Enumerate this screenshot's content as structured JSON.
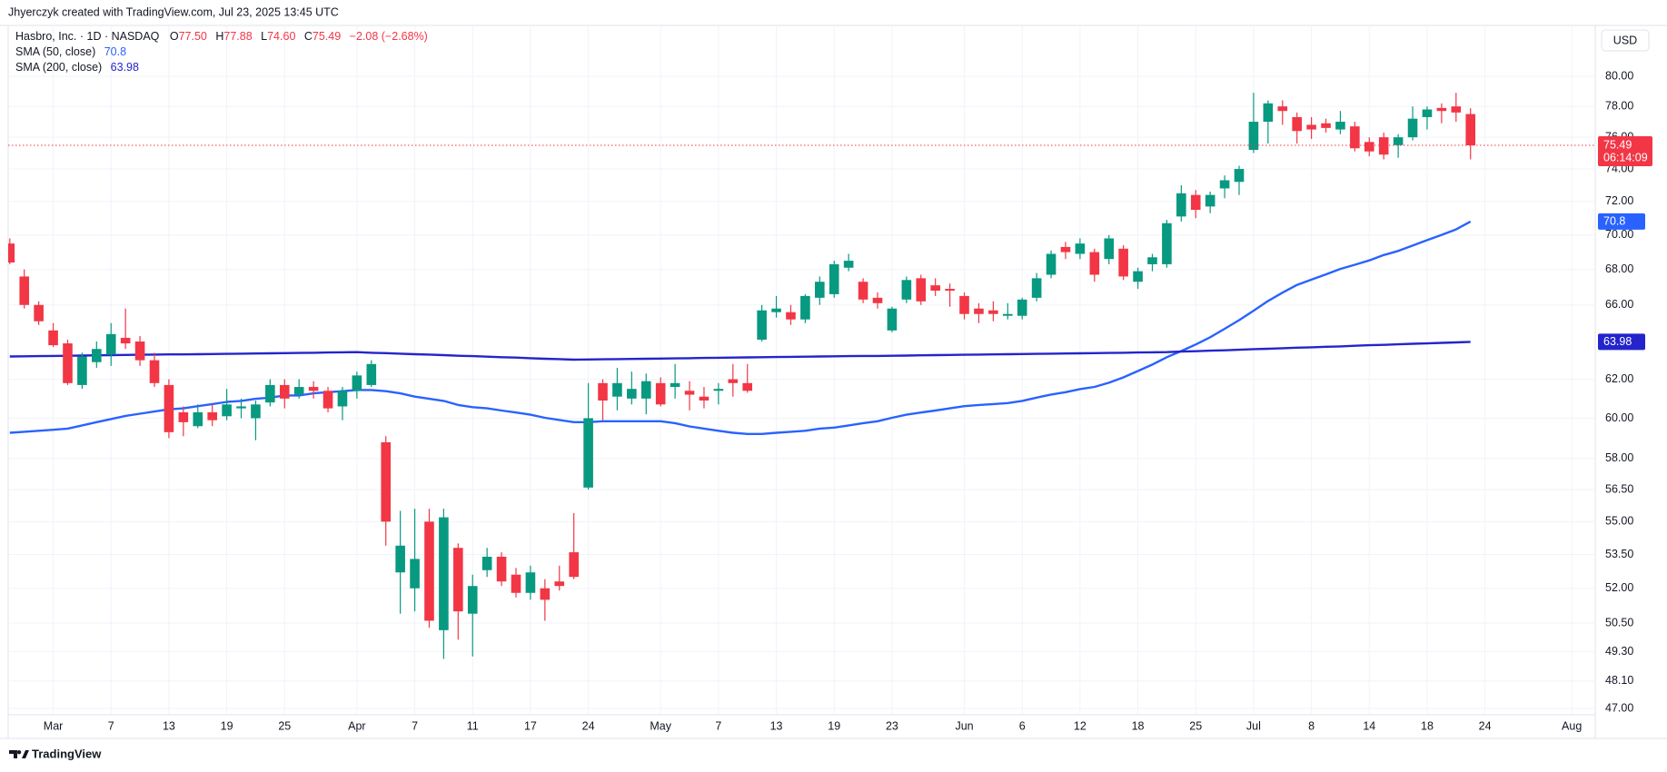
{
  "header": "Jhyerczyk created with TradingView.com, Jul 23, 2025 13:45 UTC",
  "footer": "TradingView",
  "chart_data": {
    "type": "candlestick",
    "legend": {
      "symbol": "Hasbro, Inc. · 1D · NASDAQ",
      "fields": [
        {
          "key": "O",
          "value": "77.50"
        },
        {
          "key": "H",
          "value": "77.88"
        },
        {
          "key": "L",
          "value": "74.60"
        },
        {
          "key": "C",
          "value": "75.49"
        }
      ],
      "change": "−2.08 (−2.68%)"
    },
    "currency": "USD",
    "last_price_countdown": "06:14:09",
    "up_color": "#089981",
    "down_color": "#f23645",
    "log_scale": true,
    "grid": true,
    "ylim": [
      46.75,
      83.5
    ],
    "yticks": [
      {
        "value": 80,
        "label": "80.00"
      },
      {
        "value": 78,
        "label": "78.00"
      },
      {
        "value": 76,
        "label": "76.00"
      },
      {
        "value": 74,
        "label": "74.00"
      },
      {
        "value": 72,
        "label": "72.00"
      },
      {
        "value": 70,
        "label": "70.00"
      },
      {
        "value": 68,
        "label": "68.00"
      },
      {
        "value": 66,
        "label": "66.00"
      },
      {
        "value": 62,
        "label": "62.00"
      },
      {
        "value": 60,
        "label": "60.00"
      },
      {
        "value": 58,
        "label": "58.00"
      },
      {
        "value": 56.5,
        "label": "56.50"
      },
      {
        "value": 55,
        "label": "55.00"
      },
      {
        "value": 53.5,
        "label": "53.50"
      },
      {
        "value": 52,
        "label": "52.00"
      },
      {
        "value": 50.5,
        "label": "50.50"
      },
      {
        "value": 49.3,
        "label": "49.30"
      },
      {
        "value": 48.1,
        "label": "48.10"
      },
      {
        "value": 47,
        "label": "47.00"
      }
    ],
    "categories": [
      null,
      null,
      null,
      "Mar",
      null,
      null,
      null,
      "7",
      null,
      null,
      null,
      "13",
      null,
      null,
      null,
      "19",
      null,
      null,
      null,
      "25",
      null,
      null,
      null,
      null,
      "Apr",
      null,
      null,
      null,
      "7",
      null,
      null,
      null,
      "11",
      null,
      null,
      null,
      "17",
      null,
      null,
      null,
      "24",
      null,
      null,
      null,
      null,
      "May",
      null,
      null,
      null,
      "7",
      null,
      null,
      null,
      "13",
      null,
      null,
      null,
      "19",
      null,
      null,
      null,
      "23",
      null,
      null,
      null,
      null,
      "Jun",
      null,
      null,
      null,
      "6",
      null,
      null,
      null,
      "12",
      null,
      null,
      null,
      "18",
      null,
      null,
      null,
      "25",
      null,
      null,
      null,
      "Jul",
      null,
      null,
      null,
      "8",
      null,
      null,
      null,
      "14",
      null,
      null,
      null,
      "18",
      null,
      null,
      null,
      "24",
      null,
      null,
      null,
      null,
      null,
      "Aug"
    ],
    "open": [
      69.5,
      67.6,
      66.0,
      64.6,
      63.9,
      61.7,
      62.9,
      63.3,
      64.2,
      64.0,
      63.0,
      61.7,
      60.3,
      59.6,
      60.3,
      60.1,
      60.5,
      60.0,
      60.8,
      61.7,
      61.2,
      61.6,
      61.4,
      60.6,
      61.4,
      61.7,
      58.8,
      52.7,
      52.0,
      55.0,
      50.2,
      53.8,
      50.9,
      52.8,
      53.4,
      52.6,
      51.8,
      52.0,
      52.3,
      53.6,
      56.6,
      61.8,
      61.1,
      61.0,
      61.0,
      61.8,
      61.6,
      61.4,
      61.1,
      61.4,
      62.0,
      61.8,
      64.1,
      65.6,
      65.6,
      65.2,
      66.4,
      66.6,
      68.1,
      67.3,
      66.4,
      64.6,
      66.3,
      67.5,
      67.1,
      66.9,
      66.5,
      65.8,
      65.7,
      65.4,
      65.4,
      66.4,
      67.7,
      69.3,
      68.9,
      69.0,
      68.6,
      69.2,
      67.3,
      68.3,
      68.3,
      71.1,
      72.4,
      71.7,
      72.8,
      73.2,
      75.2,
      77.0,
      78.0,
      77.3,
      76.8,
      76.9,
      76.5,
      76.7,
      75.7,
      76.0,
      75.5,
      76.0,
      77.3,
      77.9,
      78.0,
      77.5,
      null,
      null,
      null,
      null,
      null,
      null,
      null
    ],
    "high": [
      69.8,
      68.0,
      66.2,
      65.0,
      64.1,
      63.4,
      64.0,
      65.0,
      65.8,
      64.3,
      63.4,
      62.0,
      60.6,
      60.7,
      60.7,
      61.5,
      61.0,
      60.9,
      62.0,
      62.0,
      62.0,
      61.9,
      61.6,
      61.6,
      62.4,
      63.0,
      59.1,
      55.5,
      55.6,
      55.6,
      55.6,
      54.0,
      52.6,
      53.8,
      53.6,
      52.9,
      53.0,
      52.4,
      53.0,
      55.4,
      61.8,
      62.0,
      62.6,
      62.4,
      62.3,
      62.1,
      62.8,
      61.9,
      61.6,
      61.8,
      62.8,
      62.8,
      66.0,
      66.5,
      66.0,
      66.6,
      67.6,
      68.5,
      68.9,
      67.5,
      66.7,
      65.9,
      67.6,
      67.7,
      67.5,
      67.2,
      66.7,
      66.1,
      66.2,
      66.1,
      66.4,
      67.8,
      69.1,
      69.6,
      69.8,
      69.2,
      70.0,
      69.4,
      68.1,
      68.9,
      70.9,
      73.0,
      72.7,
      72.6,
      73.6,
      74.2,
      78.9,
      78.4,
      78.4,
      77.6,
      77.3,
      77.2,
      77.7,
      77.0,
      76.0,
      76.3,
      76.2,
      78.0,
      78.0,
      78.2,
      78.9,
      77.88,
      null,
      null,
      null,
      null,
      null,
      null,
      null
    ],
    "low": [
      68.3,
      65.8,
      64.9,
      63.7,
      61.7,
      61.5,
      62.6,
      62.7,
      63.6,
      62.7,
      61.6,
      59.0,
      59.1,
      59.5,
      59.6,
      59.9,
      60.0,
      58.9,
      60.6,
      60.5,
      61.0,
      61.0,
      60.3,
      59.9,
      61.0,
      61.6,
      53.9,
      50.9,
      51.0,
      50.3,
      49.0,
      49.8,
      49.1,
      52.5,
      52.1,
      51.6,
      51.5,
      50.6,
      51.9,
      52.4,
      56.5,
      59.9,
      60.4,
      60.7,
      60.2,
      60.6,
      61.0,
      60.4,
      60.5,
      60.7,
      61.1,
      61.3,
      64.0,
      65.3,
      64.9,
      65.0,
      66.0,
      66.4,
      67.9,
      66.1,
      65.8,
      64.5,
      66.1,
      66.0,
      66.5,
      65.9,
      65.2,
      65.0,
      65.1,
      65.2,
      65.2,
      66.2,
      67.5,
      68.6,
      68.6,
      67.3,
      68.3,
      67.4,
      66.9,
      67.9,
      68.1,
      70.8,
      71.0,
      71.3,
      72.2,
      72.4,
      75.0,
      75.6,
      76.8,
      75.6,
      75.9,
      76.3,
      76.2,
      75.1,
      74.8,
      74.6,
      74.7,
      75.8,
      76.5,
      76.9,
      77.0,
      74.6,
      null,
      null,
      null,
      null,
      null,
      null,
      null
    ],
    "close": [
      68.4,
      66.0,
      65.1,
      63.8,
      61.8,
      63.2,
      63.6,
      64.4,
      63.9,
      63.0,
      61.8,
      59.3,
      59.8,
      60.3,
      59.9,
      60.7,
      60.6,
      60.7,
      61.7,
      61.0,
      61.6,
      61.4,
      60.5,
      61.4,
      62.2,
      62.8,
      55.0,
      53.9,
      53.3,
      50.6,
      55.2,
      51.0,
      52.1,
      53.4,
      52.3,
      51.8,
      52.7,
      51.5,
      52.1,
      52.5,
      60.0,
      60.9,
      61.8,
      61.5,
      61.9,
      60.7,
      61.8,
      61.2,
      60.9,
      61.5,
      61.8,
      61.4,
      65.7,
      65.8,
      65.2,
      66.5,
      67.3,
      68.3,
      68.5,
      66.3,
      66.1,
      65.8,
      67.4,
      66.2,
      66.8,
      66.8,
      65.5,
      65.5,
      65.5,
      65.5,
      66.3,
      67.5,
      68.9,
      69.0,
      69.5,
      67.7,
      69.8,
      67.6,
      67.9,
      68.7,
      70.7,
      72.5,
      71.5,
      72.4,
      73.3,
      74.0,
      77.0,
      78.2,
      77.7,
      76.4,
      76.5,
      76.6,
      77.0,
      75.3,
      75.1,
      74.9,
      76.0,
      77.2,
      77.8,
      77.7,
      77.6,
      75.49,
      null,
      null,
      null,
      null,
      null,
      null,
      null
    ],
    "lines": [
      {
        "name": "SMA (50, close)",
        "color": "#2962ff",
        "values": [
          59.27,
          59.32,
          59.37,
          59.42,
          59.48,
          59.64,
          59.8,
          59.96,
          60.12,
          60.23,
          60.34,
          60.45,
          60.5,
          60.61,
          60.72,
          60.83,
          60.88,
          60.99,
          61.05,
          61.16,
          61.16,
          61.27,
          61.33,
          61.38,
          61.44,
          61.44,
          61.38,
          61.27,
          61.1,
          60.99,
          60.88,
          60.67,
          60.56,
          60.5,
          60.39,
          60.29,
          60.18,
          60.02,
          59.91,
          59.8,
          59.8,
          59.85,
          59.85,
          59.85,
          59.85,
          59.85,
          59.75,
          59.59,
          59.48,
          59.37,
          59.27,
          59.21,
          59.21,
          59.27,
          59.32,
          59.37,
          59.48,
          59.53,
          59.64,
          59.75,
          59.85,
          60.02,
          60.18,
          60.29,
          60.39,
          60.5,
          60.61,
          60.67,
          60.72,
          60.77,
          60.88,
          61.05,
          61.21,
          61.33,
          61.49,
          61.6,
          61.82,
          62.1,
          62.43,
          62.77,
          63.16,
          63.49,
          63.84,
          64.23,
          64.69,
          65.16,
          65.68,
          66.22,
          66.69,
          67.12,
          67.42,
          67.72,
          68.03,
          68.27,
          68.52,
          68.83,
          69.07,
          69.38,
          69.7,
          70.01,
          70.33,
          70.8,
          null,
          null,
          null,
          null,
          null,
          null,
          null
        ]
      },
      {
        "name": "SMA (200, close)",
        "color": "#2424cc",
        "values": [
          63.2,
          63.21,
          63.22,
          63.23,
          63.24,
          63.25,
          63.26,
          63.27,
          63.28,
          63.29,
          63.3,
          63.31,
          63.31,
          63.32,
          63.33,
          63.34,
          63.35,
          63.36,
          63.37,
          63.38,
          63.39,
          63.4,
          63.41,
          63.42,
          63.43,
          63.4,
          63.38,
          63.35,
          63.32,
          63.3,
          63.27,
          63.24,
          63.22,
          63.19,
          63.16,
          63.14,
          63.11,
          63.08,
          63.06,
          63.03,
          63.04,
          63.05,
          63.06,
          63.07,
          63.08,
          63.09,
          63.1,
          63.11,
          63.12,
          63.13,
          63.14,
          63.15,
          63.16,
          63.17,
          63.18,
          63.19,
          63.2,
          63.21,
          63.22,
          63.23,
          63.23,
          63.24,
          63.25,
          63.26,
          63.27,
          63.28,
          63.29,
          63.3,
          63.31,
          63.32,
          63.33,
          63.34,
          63.35,
          63.36,
          63.37,
          63.38,
          63.39,
          63.4,
          63.41,
          63.42,
          63.43,
          63.46,
          63.48,
          63.51,
          63.53,
          63.56,
          63.59,
          63.61,
          63.64,
          63.67,
          63.69,
          63.72,
          63.74,
          63.77,
          63.8,
          63.82,
          63.85,
          63.88,
          63.9,
          63.93,
          63.95,
          63.98,
          null,
          null,
          null,
          null,
          null,
          null,
          null
        ]
      }
    ]
  }
}
